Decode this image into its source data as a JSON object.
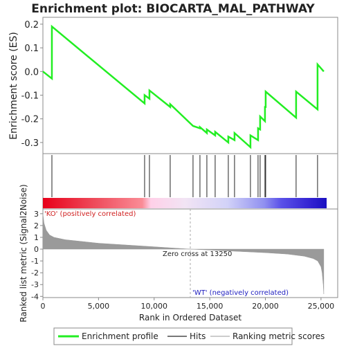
{
  "chart_data": {
    "type": "gsea",
    "title": "Enrichment plot: BIOCARTA_MAL_PATHWAY",
    "y_label": "Enrichment score (ES)",
    "y2_label": "Ranked list metric (Signal2Noise)",
    "x_label": "Rank in Ordered Dataset",
    "xlim": [
      0,
      26500
    ],
    "xticks": [
      0,
      {
        "value": 5000,
        "label": "5,000"
      },
      {
        "value": 10000,
        "label": "10,000"
      },
      {
        "value": 15000,
        "label": "15,000"
      },
      {
        "value": 20000,
        "label": "20,000"
      },
      {
        "value": 25000,
        "label": "25,000"
      }
    ],
    "ylim": [
      -0.347,
      0.229
    ],
    "yticks": [
      0.2,
      0.1,
      {
        "value": 0,
        "label": "0.0"
      },
      -0.1,
      -0.2,
      -0.3
    ],
    "y2lim": [
      -4.1,
      3.4
    ],
    "y2ticks": [
      3,
      2,
      1,
      0,
      -1,
      -2,
      -3,
      -4
    ],
    "es": {
      "name": "Enrichment profile",
      "color": "#22ee22",
      "x": [
        0,
        808,
        808,
        9142,
        9142,
        9577,
        9577,
        11443,
        11443,
        13495,
        14117,
        14117,
        14739,
        14739,
        15485,
        15485,
        16667,
        16667,
        17226,
        17226,
        18657,
        18657,
        19341,
        19341,
        19527,
        19527,
        19963,
        19963,
        20025,
        20025,
        22761,
        22761,
        24689,
        24689,
        25250
      ],
      "values": [
        0,
        -0.03,
        0.19,
        -0.135,
        -0.1,
        -0.115,
        -0.08,
        -0.15,
        -0.138,
        -0.23,
        -0.24,
        -0.235,
        -0.26,
        -0.245,
        -0.27,
        -0.255,
        -0.3,
        -0.275,
        -0.29,
        -0.26,
        -0.32,
        -0.27,
        -0.29,
        -0.24,
        -0.245,
        -0.19,
        -0.21,
        -0.15,
        -0.15,
        -0.085,
        -0.195,
        -0.085,
        -0.16,
        0.03,
        0
      ]
    },
    "hits_name": "Hits",
    "hits": [
      808,
      9142,
      9577,
      11443,
      13495,
      14117,
      14739,
      15485,
      16667,
      17226,
      18657,
      19341,
      19527,
      19963,
      20025,
      22761,
      24689
    ],
    "metric": {
      "name": "Ranking metric scores",
      "x": [
        0,
        100,
        300,
        600,
        1000,
        2000,
        3500,
        5000,
        7500,
        10000,
        13250,
        16000,
        20000,
        22000,
        23500,
        24300,
        24700,
        25000,
        25100,
        25200,
        25250
      ],
      "values": [
        3.0,
        2.2,
        1.6,
        1.2,
        1.0,
        0.8,
        0.65,
        0.5,
        0.35,
        0.2,
        0,
        -0.12,
        -0.3,
        -0.42,
        -0.6,
        -0.8,
        -1.0,
        -1.5,
        -2.0,
        -3.0,
        -3.8
      ]
    },
    "zero_cross": 13250,
    "zero_label": "Zero cross at 13250",
    "pos_label": "'KO' (positively correlated)",
    "neg_label": "'WT' (negatively correlated)"
  }
}
